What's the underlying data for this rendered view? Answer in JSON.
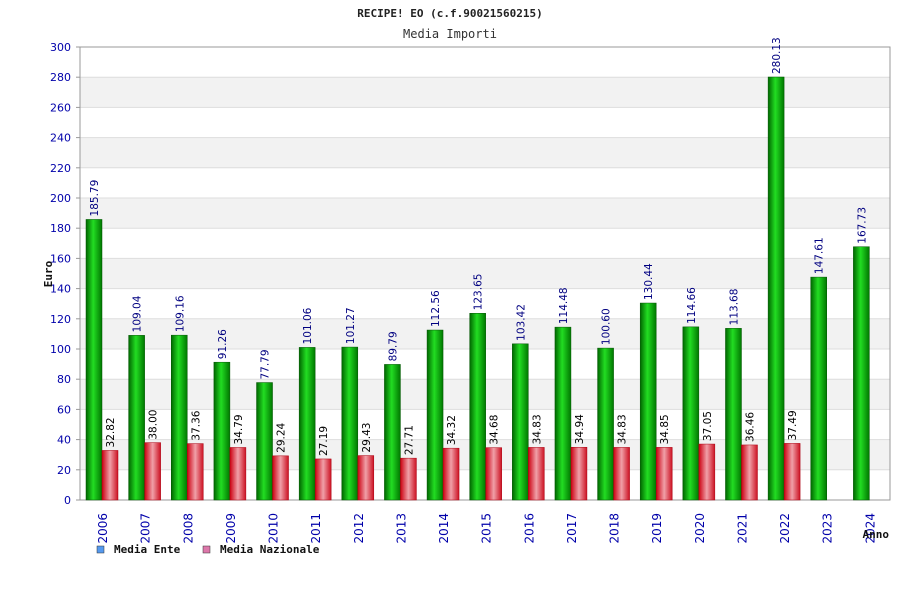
{
  "chart_data": {
    "type": "bar",
    "title": "RECIPE! EO (c.f.90021560215)",
    "subtitle": "Media Importi",
    "ylabel": "Euro",
    "xlabel": "Anno",
    "ylim": [
      0,
      300
    ],
    "yticks": [
      0,
      20,
      40,
      60,
      80,
      100,
      120,
      140,
      160,
      180,
      200,
      220,
      240,
      260,
      280,
      300
    ],
    "grid": true,
    "legend_position": "bottom-left",
    "categories": [
      "2006",
      "2007",
      "2008",
      "2009",
      "2010",
      "2011",
      "2012",
      "2013",
      "2014",
      "2015",
      "2016",
      "2017",
      "2018",
      "2019",
      "2020",
      "2021",
      "2022",
      "2023",
      "2024"
    ],
    "series": [
      {
        "name": "Media Ente",
        "color": "#00aa00",
        "legend_color": "#5599ee",
        "label_color": "#000080",
        "values": [
          185.79,
          109.04,
          109.16,
          91.26,
          77.79,
          101.06,
          101.27,
          89.79,
          112.56,
          123.65,
          103.42,
          114.48,
          100.6,
          130.44,
          114.66,
          113.68,
          280.13,
          147.61,
          167.73
        ],
        "labels": [
          "185.79",
          "109.04",
          "109.16",
          "91.26",
          "77.79",
          "101.06",
          "101.27",
          "89.79",
          "112.56",
          "123.65",
          "103.42",
          "114.48",
          "100.60",
          "130.44",
          "114.66",
          "113.68",
          "280.13",
          "147.61",
          "167.73"
        ]
      },
      {
        "name": "Media Nazionale",
        "color": "#dd2233",
        "legend_color": "#dd77aa",
        "label_color": "#000000",
        "values": [
          32.82,
          38.0,
          37.36,
          34.79,
          29.24,
          27.19,
          29.43,
          27.71,
          34.32,
          34.68,
          34.83,
          34.94,
          34.83,
          34.85,
          37.05,
          36.46,
          37.49,
          null,
          null
        ],
        "labels": [
          "32.82",
          "38.00",
          "37.36",
          "34.79",
          "29.24",
          "27.19",
          "29.43",
          "27.71",
          "34.32",
          "34.68",
          "34.83",
          "34.94",
          "34.83",
          "34.85",
          "37.05",
          "36.46",
          "37.49",
          "",
          ""
        ]
      }
    ]
  }
}
